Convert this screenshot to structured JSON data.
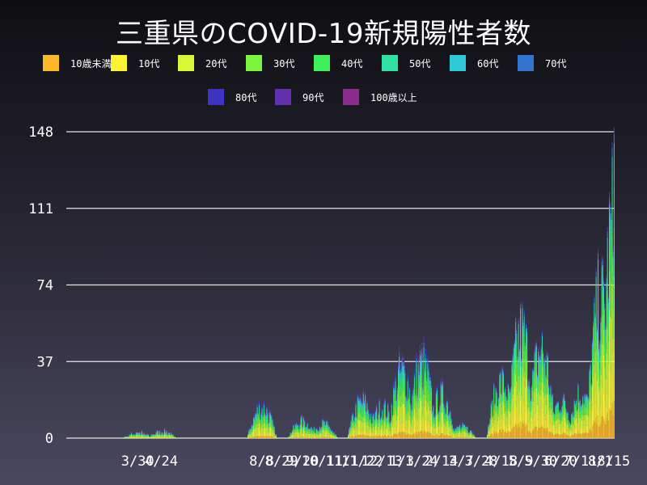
{
  "title": "三重県のCOVID-19新規陽性者数",
  "chart_data": {
    "type": "bar",
    "stacked": true,
    "title": "三重県のCOVID-19新規陽性者数",
    "xlabel": "",
    "ylabel": "",
    "ylim": [
      0,
      148
    ],
    "y_ticks": [
      0,
      37,
      74,
      111,
      148
    ],
    "grid": true,
    "legend_position": "top",
    "date_range": [
      "2020-01-30",
      "2021-08-15"
    ],
    "x_tick_labels": [
      "3/30",
      "4/24",
      "8/8",
      "8/29",
      "9/20",
      "10/11",
      "11/1",
      "11/22",
      "12/13",
      "1/3",
      "1/24",
      "2/14",
      "3/7",
      "3/28",
      "4/18",
      "5/9",
      "5/30",
      "6/20",
      "7/11",
      "8/1",
      "8/15"
    ],
    "series": [
      {
        "name": "10歳未満",
        "color": "#fbb829"
      },
      {
        "name": "10代",
        "color": "#fef234"
      },
      {
        "name": "20代",
        "color": "#d7f735"
      },
      {
        "name": "30代",
        "color": "#7cf33c"
      },
      {
        "name": "40代",
        "color": "#3ef05a"
      },
      {
        "name": "50代",
        "color": "#2fe2a3"
      },
      {
        "name": "60代",
        "color": "#2ec8d9"
      },
      {
        "name": "70代",
        "color": "#3474d1"
      },
      {
        "name": "80代",
        "color": "#3d35c2"
      },
      {
        "name": "90代",
        "color": "#6530b0"
      },
      {
        "name": "100歳以上",
        "color": "#8a2b8e"
      }
    ],
    "approx_weekly_peak_totals": [
      {
        "week_of": "2020-03-30",
        "peak": 4
      },
      {
        "week_of": "2020-04-24",
        "peak": 5
      },
      {
        "week_of": "2020-08-08",
        "peak": 22
      },
      {
        "week_of": "2020-09-20",
        "peak": 12
      },
      {
        "week_of": "2020-10-11",
        "peak": 10
      },
      {
        "week_of": "2020-11-22",
        "peak": 26
      },
      {
        "week_of": "2020-12-13",
        "peak": 22
      },
      {
        "week_of": "2021-01-03",
        "peak": 47
      },
      {
        "week_of": "2021-01-24",
        "peak": 52
      },
      {
        "week_of": "2021-02-14",
        "peak": 30
      },
      {
        "week_of": "2021-03-07",
        "peak": 8
      },
      {
        "week_of": "2021-04-18",
        "peak": 38
      },
      {
        "week_of": "2021-05-09",
        "peak": 72
      },
      {
        "week_of": "2021-05-30",
        "peak": 60
      },
      {
        "week_of": "2021-06-20",
        "peak": 25
      },
      {
        "week_of": "2021-07-11",
        "peak": 31
      },
      {
        "week_of": "2021-08-01",
        "peak": 95
      },
      {
        "week_of": "2021-08-15",
        "peak": 150
      }
    ]
  }
}
